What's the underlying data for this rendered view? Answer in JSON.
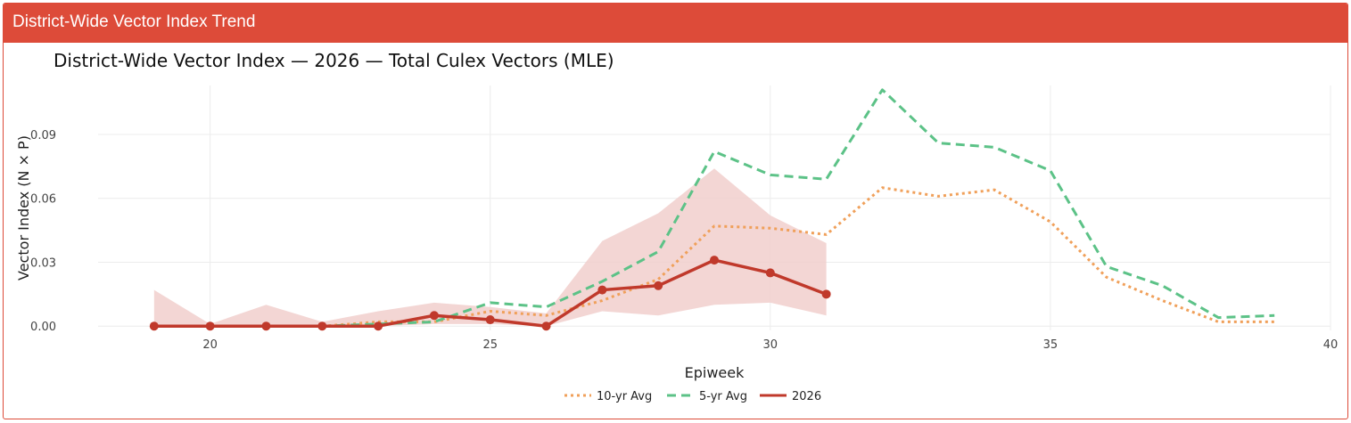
{
  "panel": {
    "title": "District-Wide Vector Index Trend"
  },
  "colors": {
    "header": "#dd4b39",
    "ten_yr": "#f0a05a",
    "five_yr": "#5cc287",
    "current": "#c0392b",
    "band": "#f1cfcc"
  },
  "chart_data": {
    "type": "line",
    "title": "District-Wide Vector Index — 2026 — Total Culex Vectors (MLE)",
    "xlabel": "Epiweek",
    "ylabel": "Vector Index (N × P)",
    "xlim": [
      18,
      40
    ],
    "ylim": [
      -0.002,
      0.113
    ],
    "x_ticks": [
      20,
      25,
      30,
      35,
      40
    ],
    "y_ticks": [
      0.0,
      0.03,
      0.06,
      0.09
    ],
    "x_tick_labels": [
      "20",
      "25",
      "30",
      "35",
      "40"
    ],
    "y_tick_labels": [
      "0.00",
      "0.03",
      "0.06",
      "0.09"
    ],
    "grid": true,
    "legend": "bottom-center",
    "series": [
      {
        "name": "10-yr Avg",
        "style": "dotted",
        "x": [
          22,
          23,
          24,
          25,
          26,
          27,
          28,
          29,
          30,
          31,
          32,
          33,
          34,
          35,
          36,
          37,
          38,
          39
        ],
        "y": [
          0.0,
          0.002,
          0.002,
          0.007,
          0.005,
          0.012,
          0.022,
          0.047,
          0.046,
          0.043,
          0.065,
          0.061,
          0.064,
          0.049,
          0.023,
          0.012,
          0.002,
          0.002
        ]
      },
      {
        "name": "5-yr Avg",
        "style": "dashed",
        "x": [
          22,
          23,
          24,
          25,
          26,
          27,
          28,
          29,
          30,
          31,
          32,
          33,
          34,
          35,
          36,
          37,
          38,
          39
        ],
        "y": [
          0.0,
          0.001,
          0.002,
          0.011,
          0.009,
          0.021,
          0.035,
          0.082,
          0.071,
          0.069,
          0.111,
          0.086,
          0.084,
          0.073,
          0.028,
          0.019,
          0.004,
          0.005
        ]
      },
      {
        "name": "2026",
        "style": "solid-markers",
        "x": [
          19,
          20,
          21,
          22,
          23,
          24,
          25,
          26,
          27,
          28,
          29,
          30,
          31
        ],
        "y": [
          0.0,
          0.0,
          0.0,
          0.0,
          0.0,
          0.005,
          0.003,
          0.0,
          0.017,
          0.019,
          0.031,
          0.025,
          0.015
        ]
      }
    ],
    "band": {
      "x": [
        19,
        20,
        21,
        22,
        23,
        24,
        25,
        26,
        27,
        28,
        29,
        30,
        31
      ],
      "upper": [
        0.017,
        0.001,
        0.01,
        0.002,
        0.007,
        0.011,
        0.009,
        0.006,
        0.04,
        0.053,
        0.074,
        0.052,
        0.039
      ],
      "lower": [
        0.0,
        0.0,
        0.0,
        0.0,
        0.0,
        0.001,
        0.001,
        0.0,
        0.007,
        0.005,
        0.01,
        0.011,
        0.005
      ]
    }
  }
}
